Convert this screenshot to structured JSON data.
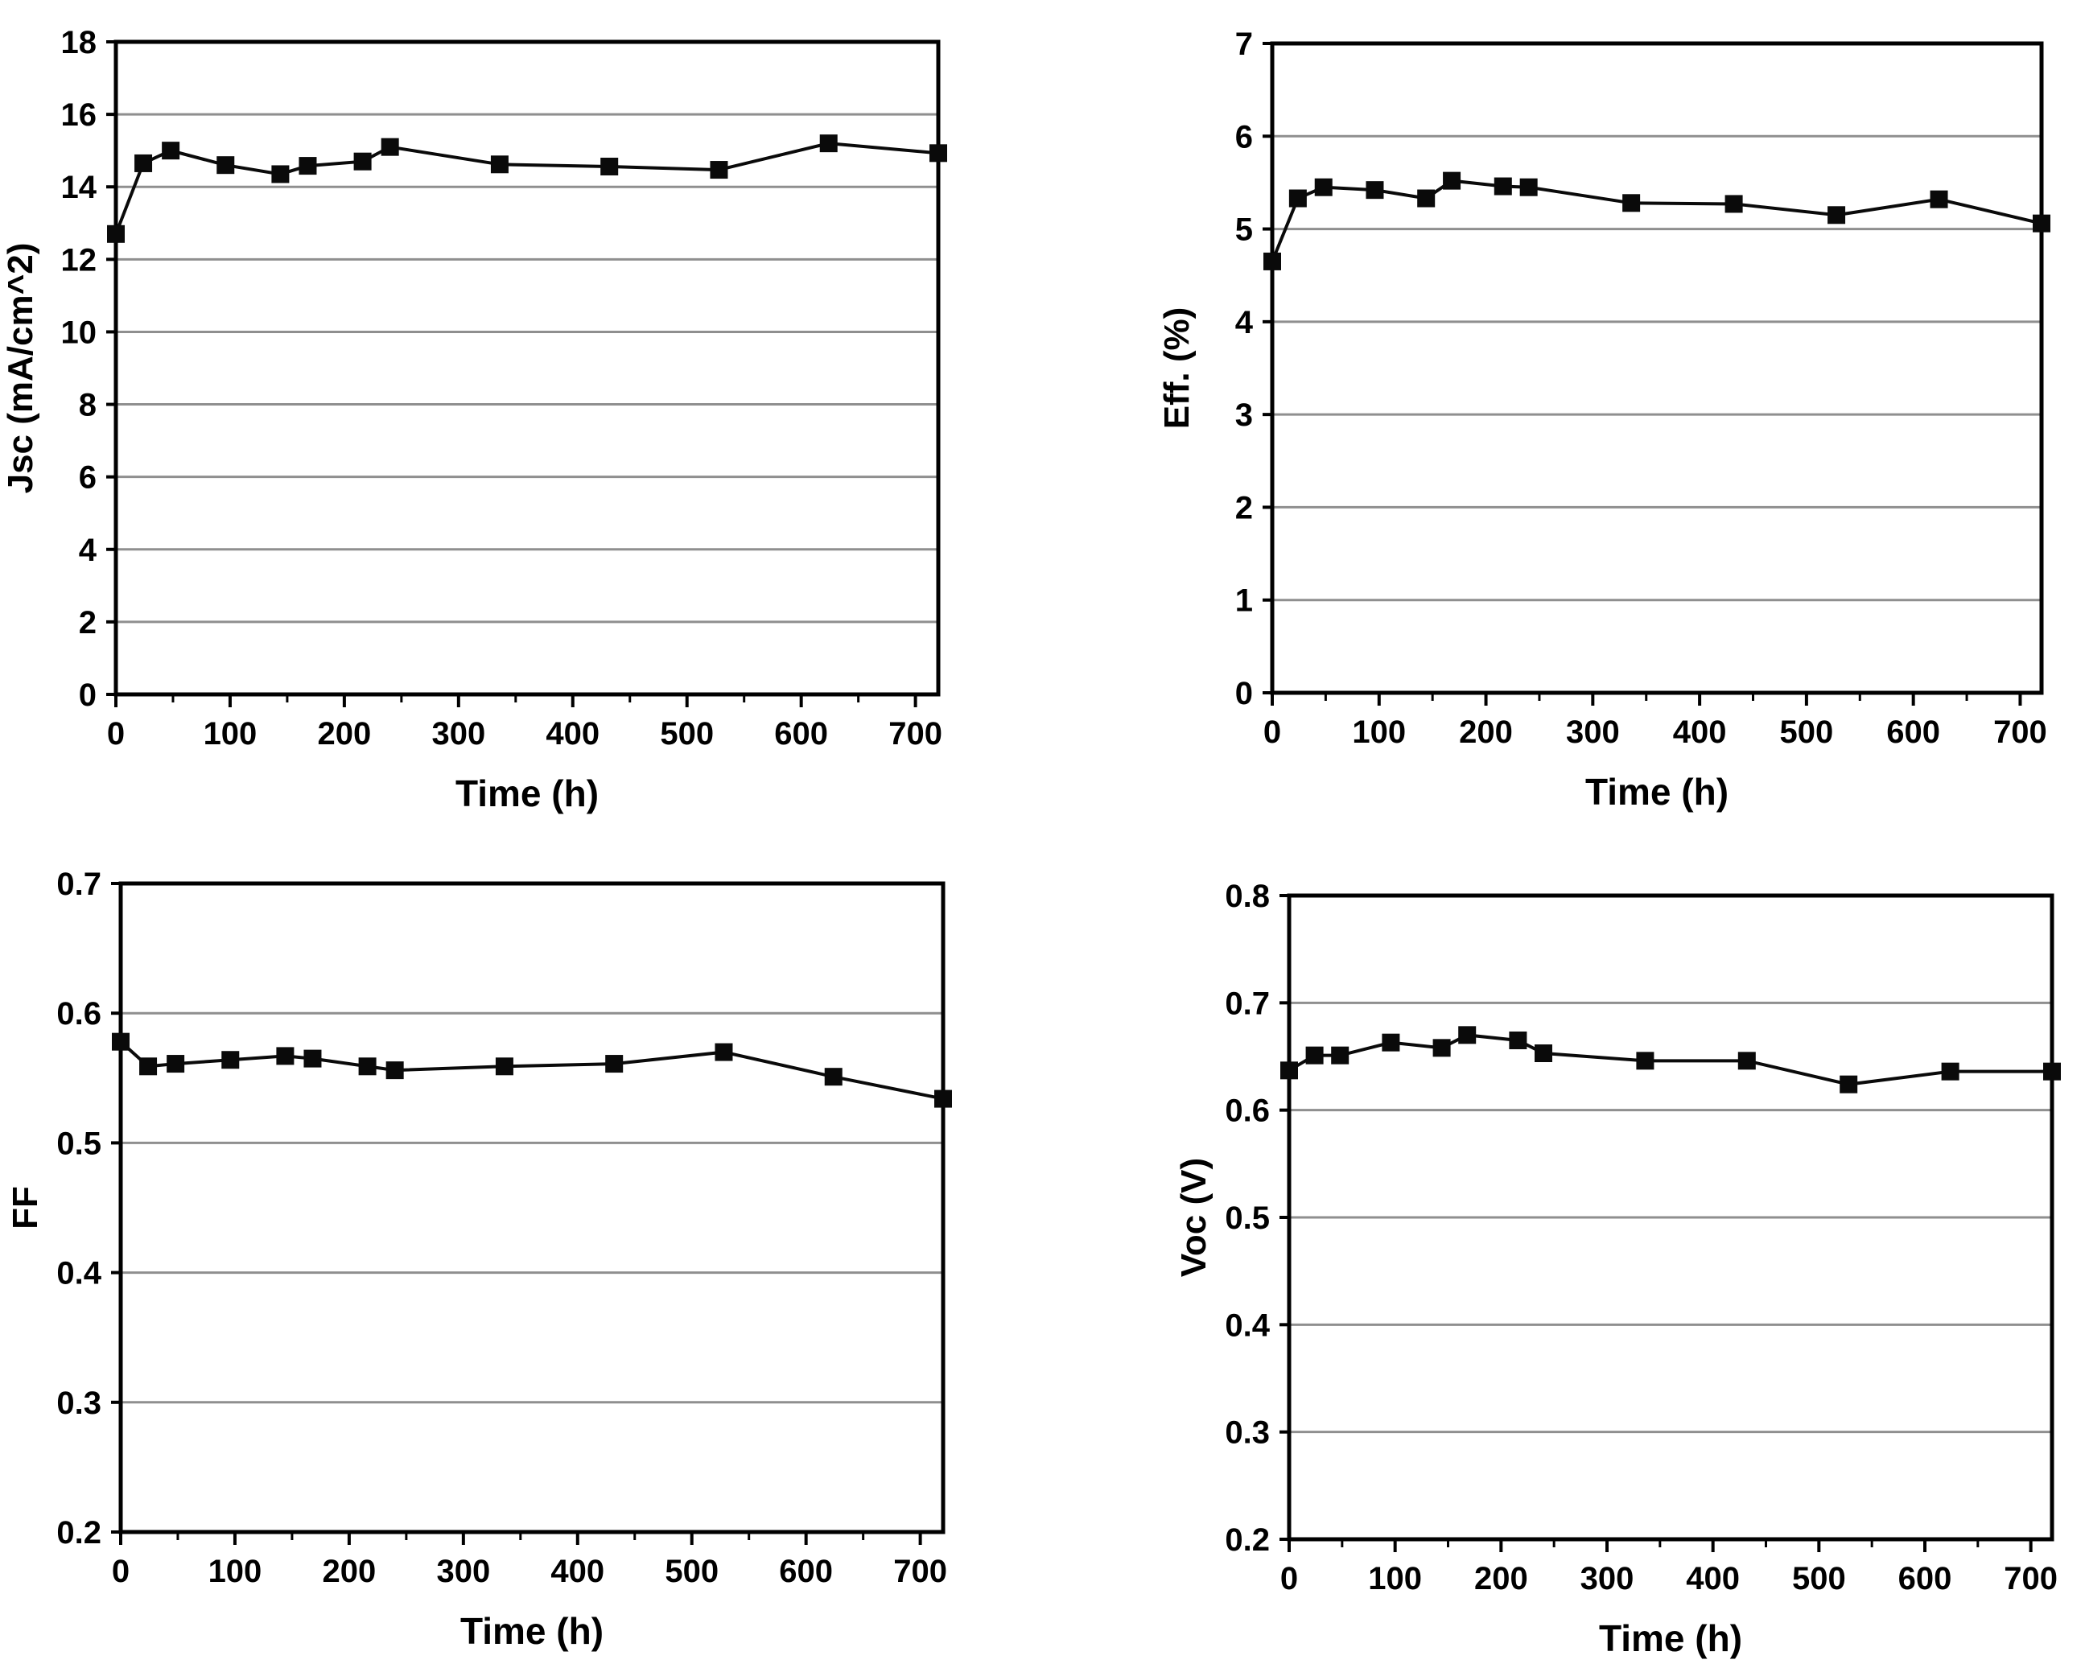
{
  "page": {
    "background_color": "#ffffff",
    "description_labels": {
      "time_axis": "Time (h)"
    }
  },
  "chart_data": [
    {
      "id": "jsc",
      "type": "line",
      "title": "",
      "xlabel": "Time (h)",
      "ylabel": "Jsc (mA/cm^2)",
      "x": [
        0,
        24,
        48,
        96,
        144,
        168,
        216,
        240,
        336,
        432,
        528,
        624,
        720
      ],
      "values": [
        12.7,
        14.65,
        15.0,
        14.6,
        14.35,
        14.58,
        14.7,
        15.1,
        14.62,
        14.56,
        14.47,
        15.2,
        14.93
      ],
      "xlim": [
        0,
        720
      ],
      "ylim": [
        0,
        18
      ],
      "xticks": [
        0,
        100,
        200,
        300,
        400,
        500,
        600,
        700
      ],
      "xtick_labels": [
        "0",
        "100",
        "200",
        "300",
        "400",
        "500",
        "600",
        "700"
      ],
      "x_minor_ticks": [
        50,
        150,
        250,
        350,
        450,
        550,
        650
      ],
      "yticks": [
        0,
        2,
        4,
        6,
        8,
        10,
        12,
        14,
        16,
        18
      ],
      "ytick_labels": [
        "0",
        "2",
        "4",
        "6",
        "8",
        "10",
        "12",
        "14",
        "16",
        "18"
      ],
      "grid": true,
      "legend": null,
      "marker": "square",
      "line_color": "#0a0a0a",
      "marker_color": "#0a0a0a",
      "grid_color": "#8f8f8f",
      "frame_color": "#000000"
    },
    {
      "id": "eff",
      "type": "line",
      "title": "",
      "xlabel": "Time (h)",
      "ylabel": "Eff. (%)",
      "x": [
        0,
        24,
        48,
        96,
        144,
        168,
        216,
        240,
        336,
        432,
        528,
        624,
        720
      ],
      "values": [
        4.65,
        5.33,
        5.45,
        5.42,
        5.33,
        5.52,
        5.46,
        5.45,
        5.28,
        5.27,
        5.15,
        5.32,
        5.06
      ],
      "xlim": [
        0,
        720
      ],
      "ylim": [
        0,
        7
      ],
      "xticks": [
        0,
        100,
        200,
        300,
        400,
        500,
        600,
        700
      ],
      "xtick_labels": [
        "0",
        "100",
        "200",
        "300",
        "400",
        "500",
        "600",
        "700"
      ],
      "x_minor_ticks": [
        50,
        150,
        250,
        350,
        450,
        550,
        650
      ],
      "yticks": [
        0,
        1,
        2,
        3,
        4,
        5,
        6,
        7
      ],
      "ytick_labels": [
        "0",
        "1",
        "2",
        "3",
        "4",
        "5",
        "6",
        "7"
      ],
      "grid": true,
      "legend": null,
      "marker": "square",
      "line_color": "#0a0a0a",
      "marker_color": "#0a0a0a",
      "grid_color": "#8f8f8f",
      "frame_color": "#000000"
    },
    {
      "id": "ff",
      "type": "line",
      "title": "",
      "xlabel": "Time (h)",
      "ylabel": "FF",
      "x": [
        0,
        24,
        48,
        96,
        144,
        168,
        216,
        240,
        336,
        432,
        528,
        624,
        720
      ],
      "values": [
        0.578,
        0.559,
        0.561,
        0.564,
        0.567,
        0.565,
        0.559,
        0.556,
        0.559,
        0.561,
        0.57,
        0.551,
        0.534
      ],
      "xlim": [
        0,
        720
      ],
      "ylim": [
        0.2,
        0.7
      ],
      "xticks": [
        0,
        100,
        200,
        300,
        400,
        500,
        600,
        700
      ],
      "xtick_labels": [
        "0",
        "100",
        "200",
        "300",
        "400",
        "500",
        "600",
        "700"
      ],
      "x_minor_ticks": [
        50,
        150,
        250,
        350,
        450,
        550,
        650
      ],
      "yticks": [
        0.2,
        0.3,
        0.4,
        0.5,
        0.6,
        0.7
      ],
      "ytick_labels": [
        "0.2",
        "0.3",
        "0.4",
        "0.5",
        "0.6",
        "0.7"
      ],
      "grid": true,
      "legend": null,
      "marker": "square",
      "line_color": "#0a0a0a",
      "marker_color": "#0a0a0a",
      "grid_color": "#8f8f8f",
      "frame_color": "#000000"
    },
    {
      "id": "voc",
      "type": "line",
      "title": "",
      "xlabel": "Time (h)",
      "ylabel": "Voc (V)",
      "x": [
        0,
        24,
        48,
        96,
        144,
        168,
        216,
        240,
        336,
        432,
        528,
        624,
        720
      ],
      "values": [
        0.637,
        0.651,
        0.651,
        0.663,
        0.658,
        0.67,
        0.665,
        0.653,
        0.646,
        0.646,
        0.624,
        0.636,
        0.636
      ],
      "xlim": [
        0,
        720
      ],
      "ylim": [
        0.2,
        0.8
      ],
      "xticks": [
        0,
        100,
        200,
        300,
        400,
        500,
        600,
        700
      ],
      "xtick_labels": [
        "0",
        "100",
        "200",
        "300",
        "400",
        "500",
        "600",
        "700"
      ],
      "x_minor_ticks": [
        50,
        150,
        250,
        350,
        450,
        550,
        650
      ],
      "yticks": [
        0.2,
        0.3,
        0.4,
        0.5,
        0.6,
        0.7,
        0.8
      ],
      "ytick_labels": [
        "0.2",
        "0.3",
        "0.4",
        "0.5",
        "0.6",
        "0.7",
        "0.8"
      ],
      "grid": true,
      "legend": null,
      "marker": "square",
      "line_color": "#0a0a0a",
      "marker_color": "#0a0a0a",
      "grid_color": "#8f8f8f",
      "frame_color": "#000000"
    }
  ]
}
